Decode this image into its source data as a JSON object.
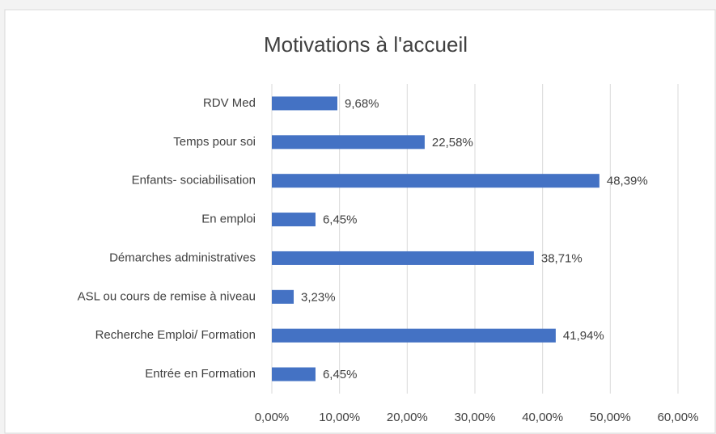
{
  "chart_data": {
    "type": "bar",
    "orientation": "horizontal",
    "title": "Motivations à l'accueil",
    "categories": [
      "RDV Med",
      "Temps pour soi",
      "Enfants- sociabilisation",
      "En emploi",
      "Démarches administratives",
      "ASL ou cours de remise à niveau",
      "Recherche Emploi/ Formation",
      "Entrée en Formation"
    ],
    "values": [
      9.68,
      22.58,
      48.39,
      6.45,
      38.71,
      3.23,
      41.94,
      6.45
    ],
    "value_labels": [
      "9,68%",
      "22,58%",
      "48,39%",
      "6,45%",
      "38,71%",
      "3,23%",
      "41,94%",
      "6,45%"
    ],
    "color": "#4472c4",
    "xlim": [
      0,
      60
    ],
    "xticks": [
      {
        "value": 0,
        "label": "0,00%"
      },
      {
        "value": 10,
        "label": "10,00%"
      },
      {
        "value": 20,
        "label": "20,00%"
      },
      {
        "value": 30,
        "label": "30,00%"
      },
      {
        "value": 40,
        "label": "40,00%"
      },
      {
        "value": 50,
        "label": "50,00%"
      },
      {
        "value": 60,
        "label": "60,00%"
      }
    ],
    "grid": true
  }
}
